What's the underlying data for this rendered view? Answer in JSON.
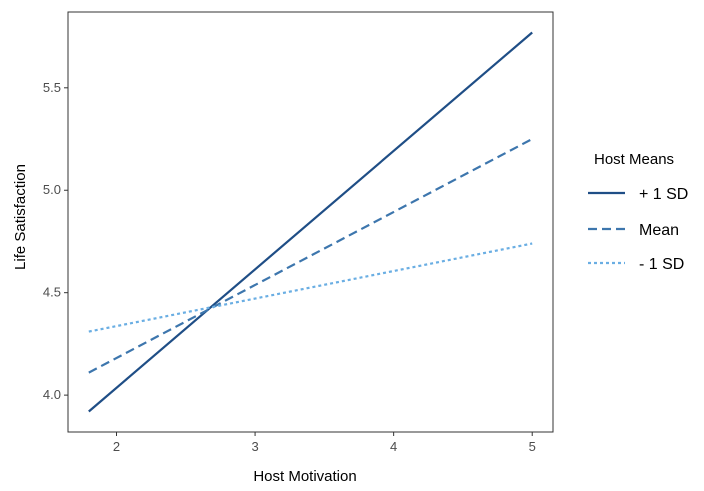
{
  "chart_data": {
    "type": "line",
    "xlabel": "Host Motivation",
    "ylabel": "Life Satisfaction",
    "xlim": [
      1.65,
      5.15
    ],
    "ylim": [
      3.82,
      5.87
    ],
    "xticks": [
      2,
      3,
      4,
      5
    ],
    "yticks": [
      4.0,
      4.5,
      5.0,
      5.5
    ],
    "ytick_labels": [
      "4.0",
      "4.5",
      "5.0",
      "5.5"
    ],
    "grid": false,
    "legend": {
      "title": "Host Means",
      "position": "right"
    },
    "series": [
      {
        "name": "+ 1 SD",
        "x": [
          1.8,
          5.0
        ],
        "y": [
          3.92,
          5.77
        ],
        "style": "solid",
        "color": "#1f4e86"
      },
      {
        "name": "Mean",
        "x": [
          1.8,
          5.0
        ],
        "y": [
          4.11,
          5.25
        ],
        "style": "dashed",
        "color": "#3d76ad"
      },
      {
        "name": "- 1 SD",
        "x": [
          1.8,
          5.0
        ],
        "y": [
          4.31,
          4.74
        ],
        "style": "dotted",
        "color": "#6aaee3"
      }
    ]
  }
}
